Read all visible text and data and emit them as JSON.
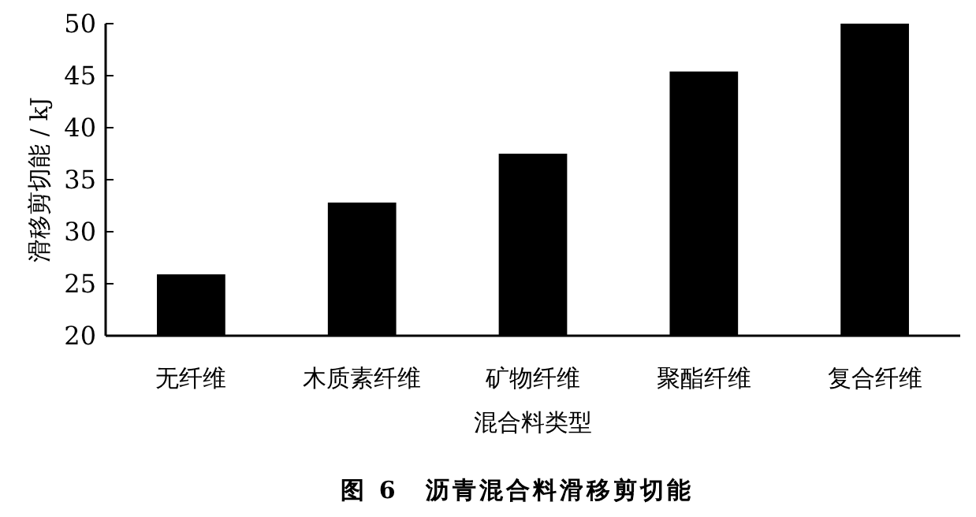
{
  "chart_data": {
    "type": "bar",
    "title": "图 6　沥青混合料滑移剪切能",
    "xlabel": "混合料类型",
    "ylabel": "滑移剪切能 / kJ",
    "categories": [
      "无纤维",
      "木质素纤维",
      "矿物纤维",
      "聚酯纤维",
      "复合纤维"
    ],
    "values": [
      25.9,
      32.8,
      37.5,
      45.4,
      50
    ],
    "color": "#000000",
    "ylim": [
      20,
      50
    ],
    "yticks": [
      20,
      25,
      30,
      35,
      40,
      45,
      50
    ],
    "grid": false
  }
}
